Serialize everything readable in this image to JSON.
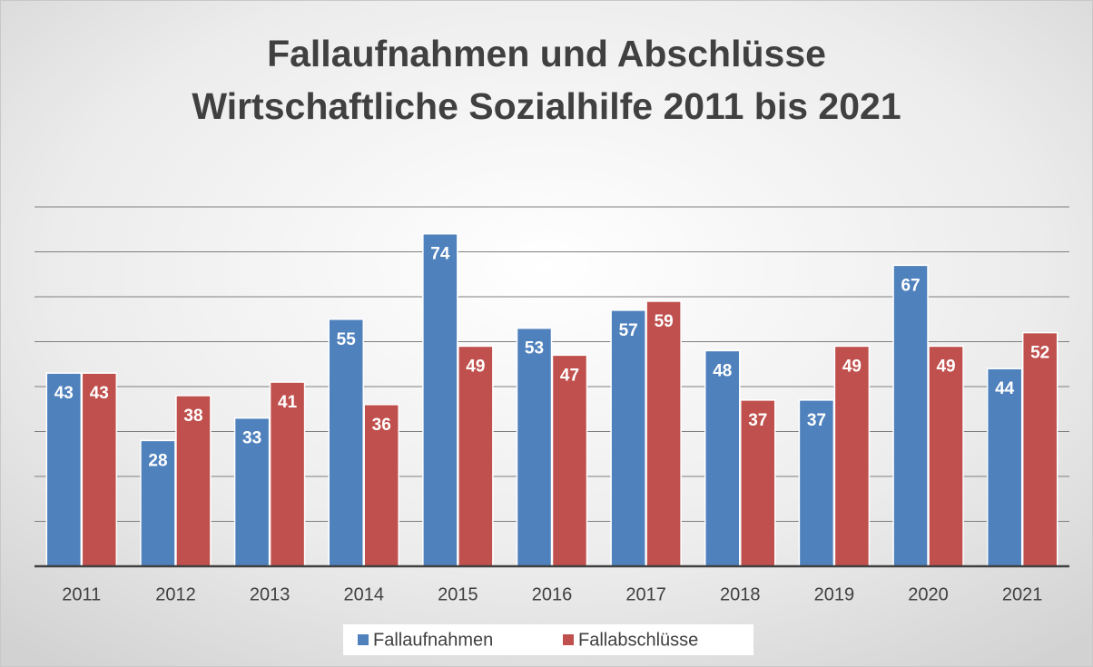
{
  "chart_data": {
    "type": "bar",
    "title": [
      "Fallaufnahmen und Abschlüsse",
      "Wirtschaftliche Sozialhilfe 2011 bis 2021"
    ],
    "categories": [
      "2011",
      "2012",
      "2013",
      "2014",
      "2015",
      "2016",
      "2017",
      "2018",
      "2019",
      "2020",
      "2021"
    ],
    "series": [
      {
        "name": "Fallaufnahmen",
        "color": "#4f81bd",
        "values": [
          43,
          28,
          33,
          55,
          74,
          53,
          57,
          48,
          37,
          67,
          44
        ]
      },
      {
        "name": "Fallabschlüsse",
        "color": "#c0504d",
        "values": [
          43,
          38,
          41,
          36,
          49,
          47,
          59,
          37,
          49,
          49,
          52
        ]
      }
    ],
    "ylim": [
      0,
      80
    ],
    "yticks": [
      0,
      10,
      20,
      30,
      40,
      50,
      60,
      70,
      80
    ],
    "grid": true,
    "legend": "bottom"
  }
}
